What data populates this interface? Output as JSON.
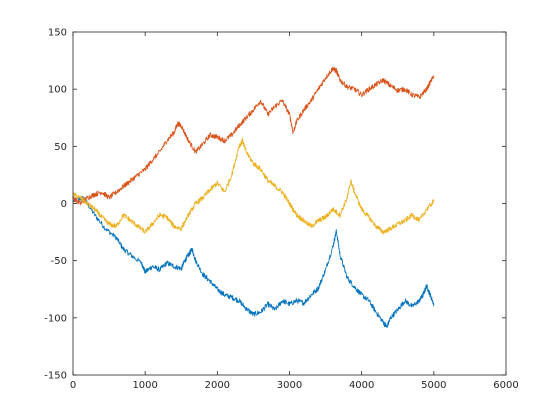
{
  "chart_data": {
    "type": "line",
    "xlim": [
      0,
      6000
    ],
    "ylim": [
      -150,
      150
    ],
    "xticks": [
      0,
      1000,
      2000,
      3000,
      4000,
      5000,
      6000
    ],
    "yticks": [
      -150,
      -100,
      -50,
      0,
      50,
      100,
      150
    ],
    "grid": false,
    "legend": "none",
    "series": [
      {
        "color": "#0072BD",
        "points": [
          [
            0,
            2
          ],
          [
            150,
            5
          ],
          [
            300,
            -10
          ],
          [
            450,
            -22
          ],
          [
            600,
            -30
          ],
          [
            700,
            -40
          ],
          [
            800,
            -45
          ],
          [
            950,
            -52
          ],
          [
            1000,
            -60
          ],
          [
            1100,
            -55
          ],
          [
            1200,
            -58
          ],
          [
            1300,
            -52
          ],
          [
            1400,
            -55
          ],
          [
            1500,
            -57
          ],
          [
            1550,
            -50
          ],
          [
            1600,
            -45
          ],
          [
            1650,
            -40
          ],
          [
            1700,
            -50
          ],
          [
            1800,
            -62
          ],
          [
            1900,
            -68
          ],
          [
            2000,
            -75
          ],
          [
            2100,
            -80
          ],
          [
            2200,
            -82
          ],
          [
            2300,
            -85
          ],
          [
            2400,
            -92
          ],
          [
            2500,
            -97
          ],
          [
            2600,
            -95
          ],
          [
            2700,
            -88
          ],
          [
            2800,
            -93
          ],
          [
            2900,
            -85
          ],
          [
            3000,
            -88
          ],
          [
            3100,
            -85
          ],
          [
            3200,
            -87
          ],
          [
            3300,
            -80
          ],
          [
            3400,
            -74
          ],
          [
            3500,
            -58
          ],
          [
            3600,
            -38
          ],
          [
            3650,
            -24
          ],
          [
            3700,
            -45
          ],
          [
            3800,
            -65
          ],
          [
            3900,
            -73
          ],
          [
            4000,
            -80
          ],
          [
            4100,
            -85
          ],
          [
            4200,
            -95
          ],
          [
            4300,
            -104
          ],
          [
            4350,
            -108
          ],
          [
            4400,
            -100
          ],
          [
            4500,
            -93
          ],
          [
            4600,
            -85
          ],
          [
            4700,
            -90
          ],
          [
            4800,
            -85
          ],
          [
            4850,
            -80
          ],
          [
            4900,
            -72
          ],
          [
            4950,
            -80
          ],
          [
            5000,
            -88
          ]
        ]
      },
      {
        "color": "#D95319",
        "points": [
          [
            0,
            5
          ],
          [
            100,
            0
          ],
          [
            200,
            5
          ],
          [
            300,
            8
          ],
          [
            400,
            10
          ],
          [
            500,
            5
          ],
          [
            600,
            10
          ],
          [
            700,
            15
          ],
          [
            800,
            20
          ],
          [
            900,
            25
          ],
          [
            1000,
            30
          ],
          [
            1100,
            38
          ],
          [
            1200,
            45
          ],
          [
            1300,
            55
          ],
          [
            1400,
            62
          ],
          [
            1450,
            70
          ],
          [
            1500,
            68
          ],
          [
            1600,
            55
          ],
          [
            1700,
            45
          ],
          [
            1800,
            52
          ],
          [
            1900,
            60
          ],
          [
            2000,
            58
          ],
          [
            2100,
            55
          ],
          [
            2200,
            60
          ],
          [
            2300,
            68
          ],
          [
            2400,
            75
          ],
          [
            2500,
            82
          ],
          [
            2600,
            90
          ],
          [
            2700,
            78
          ],
          [
            2800,
            85
          ],
          [
            2900,
            90
          ],
          [
            3000,
            78
          ],
          [
            3050,
            62
          ],
          [
            3100,
            72
          ],
          [
            3200,
            82
          ],
          [
            3300,
            90
          ],
          [
            3400,
            100
          ],
          [
            3500,
            110
          ],
          [
            3600,
            118
          ],
          [
            3650,
            116
          ],
          [
            3700,
            108
          ],
          [
            3800,
            102
          ],
          [
            3900,
            100
          ],
          [
            4000,
            95
          ],
          [
            4100,
            100
          ],
          [
            4200,
            104
          ],
          [
            4300,
            108
          ],
          [
            4400,
            103
          ],
          [
            4500,
            99
          ],
          [
            4600,
            100
          ],
          [
            4700,
            95
          ],
          [
            4800,
            93
          ],
          [
            4900,
            100
          ],
          [
            5000,
            112
          ]
        ]
      },
      {
        "color": "#EDB120",
        "points": [
          [
            0,
            8
          ],
          [
            100,
            5
          ],
          [
            200,
            0
          ],
          [
            300,
            -5
          ],
          [
            400,
            -12
          ],
          [
            500,
            -18
          ],
          [
            600,
            -20
          ],
          [
            700,
            -10
          ],
          [
            800,
            -15
          ],
          [
            900,
            -20
          ],
          [
            1000,
            -25
          ],
          [
            1100,
            -18
          ],
          [
            1200,
            -10
          ],
          [
            1300,
            -12
          ],
          [
            1400,
            -20
          ],
          [
            1500,
            -22
          ],
          [
            1600,
            -10
          ],
          [
            1700,
            0
          ],
          [
            1800,
            5
          ],
          [
            1900,
            12
          ],
          [
            2000,
            18
          ],
          [
            2100,
            10
          ],
          [
            2200,
            25
          ],
          [
            2300,
            50
          ],
          [
            2350,
            55
          ],
          [
            2400,
            45
          ],
          [
            2500,
            35
          ],
          [
            2600,
            30
          ],
          [
            2700,
            20
          ],
          [
            2800,
            15
          ],
          [
            2900,
            10
          ],
          [
            3000,
            0
          ],
          [
            3100,
            -10
          ],
          [
            3200,
            -15
          ],
          [
            3300,
            -20
          ],
          [
            3400,
            -15
          ],
          [
            3500,
            -12
          ],
          [
            3600,
            -5
          ],
          [
            3700,
            -10
          ],
          [
            3800,
            5
          ],
          [
            3850,
            20
          ],
          [
            3900,
            10
          ],
          [
            4000,
            -5
          ],
          [
            4100,
            -12
          ],
          [
            4200,
            -20
          ],
          [
            4300,
            -25
          ],
          [
            4400,
            -22
          ],
          [
            4500,
            -18
          ],
          [
            4600,
            -15
          ],
          [
            4700,
            -10
          ],
          [
            4800,
            -15
          ],
          [
            4900,
            -5
          ],
          [
            5000,
            2
          ]
        ]
      }
    ]
  }
}
